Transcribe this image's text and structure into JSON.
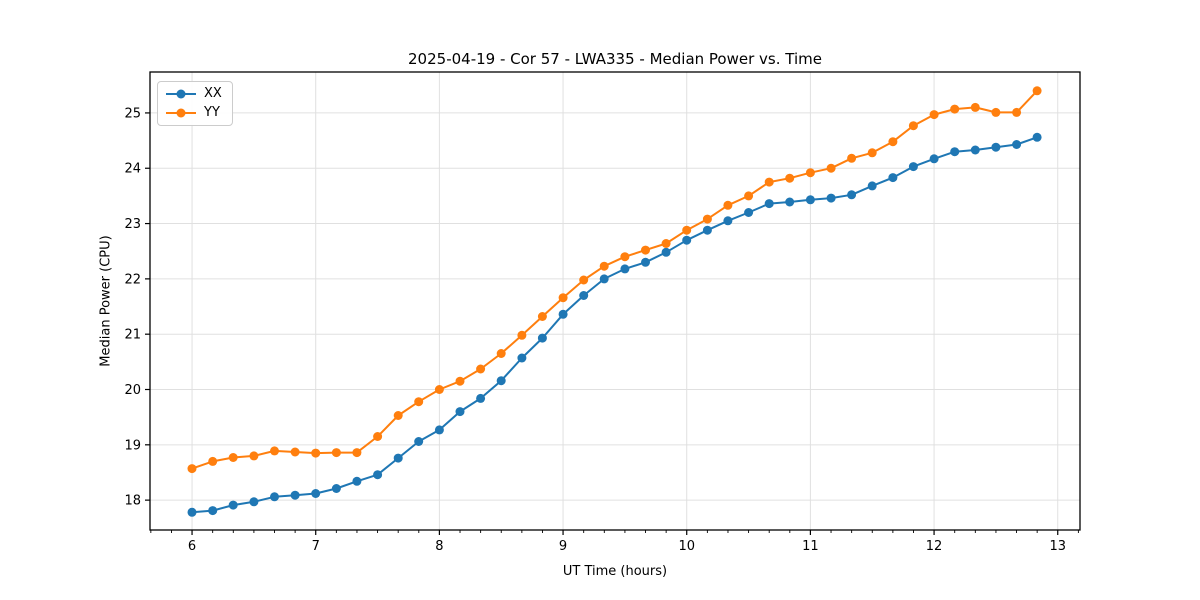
{
  "figure": {
    "background": "#ffffff"
  },
  "chart_data": {
    "type": "line",
    "title": "2025-04-19 - Cor 57 - LWA335 - Median Power vs. Time",
    "xlabel": "UT Time (hours)",
    "ylabel": "Median Power (CPU)",
    "grid": true,
    "legend_position": "upper-left",
    "xlim": [
      5.66,
      13.18
    ],
    "ylim": [
      17.46,
      25.74
    ],
    "xticks": [
      6,
      7,
      8,
      9,
      10,
      11,
      12,
      13
    ],
    "yticks": [
      18,
      19,
      20,
      21,
      22,
      23,
      24,
      25
    ],
    "x_minor_interval": 0.16667,
    "colors": {
      "grid": "#e0e0e0",
      "axis": "#000000"
    },
    "x": [
      6.0,
      6.167,
      6.333,
      6.5,
      6.667,
      6.833,
      7.0,
      7.167,
      7.333,
      7.5,
      7.667,
      7.833,
      8.0,
      8.167,
      8.333,
      8.5,
      8.667,
      8.833,
      9.0,
      9.167,
      9.333,
      9.5,
      9.667,
      9.833,
      10.0,
      10.167,
      10.333,
      10.5,
      10.667,
      10.833,
      11.0,
      11.167,
      11.333,
      11.5,
      11.667,
      11.833,
      12.0,
      12.167,
      12.333,
      12.5,
      12.667,
      12.833
    ],
    "series": [
      {
        "name": "XX",
        "color": "#1f77b4",
        "values": [
          17.78,
          17.81,
          17.91,
          17.97,
          18.06,
          18.09,
          18.12,
          18.21,
          18.34,
          18.46,
          18.76,
          19.06,
          19.27,
          19.6,
          19.84,
          20.16,
          20.57,
          20.93,
          21.36,
          21.7,
          22.0,
          22.18,
          22.3,
          22.48,
          22.7,
          22.88,
          23.05,
          23.2,
          23.36,
          23.39,
          23.43,
          23.46,
          23.52,
          23.68,
          23.83,
          24.03,
          24.17,
          24.3,
          24.33,
          24.38,
          24.43,
          24.56
        ]
      },
      {
        "name": "YY",
        "color": "#ff7f0e",
        "values": [
          18.57,
          18.7,
          18.77,
          18.8,
          18.89,
          18.87,
          18.85,
          18.86,
          18.86,
          19.15,
          19.53,
          19.78,
          20.0,
          20.15,
          20.37,
          20.65,
          20.98,
          21.32,
          21.66,
          21.98,
          22.23,
          22.4,
          22.52,
          22.64,
          22.88,
          23.08,
          23.33,
          23.5,
          23.75,
          23.82,
          23.92,
          24.0,
          24.18,
          24.28,
          24.48,
          24.77,
          24.97,
          25.07,
          25.1,
          25.01,
          25.01,
          25.4
        ]
      }
    ]
  }
}
